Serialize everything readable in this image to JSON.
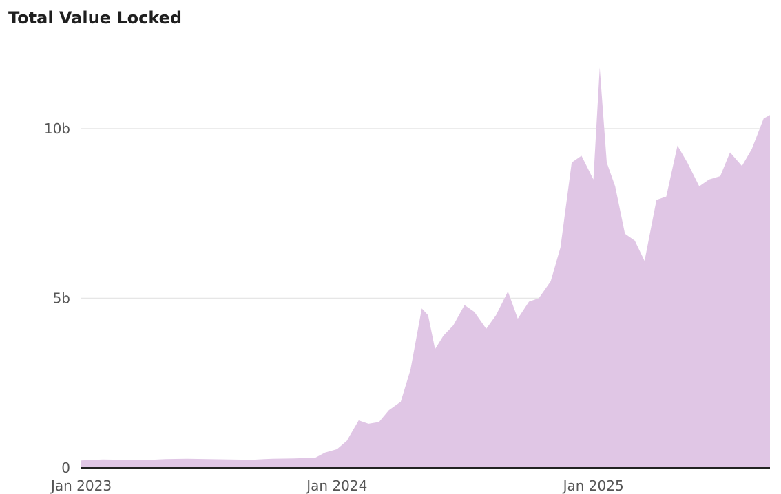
{
  "chart_data": {
    "type": "area",
    "title": "Total Value Locked",
    "xlabel": "",
    "ylabel": "",
    "x_tick_labels": [
      "Jan 2023",
      "Jan 2024",
      "Jan 2025"
    ],
    "y_tick_labels": [
      "0",
      "5b",
      "10b"
    ],
    "y_ticks": [
      0,
      5,
      10
    ],
    "y_unit": "billions",
    "xlim": [
      "2023-01-01",
      "2025-09-10"
    ],
    "ylim": [
      0,
      12
    ],
    "grid": "horizontal",
    "color": "#e0c6e5",
    "series": [
      {
        "x": [
          "2023-01-01",
          "2023-02-01",
          "2023-03-01",
          "2023-04-01",
          "2023-05-01",
          "2023-06-01",
          "2023-07-01",
          "2023-08-01",
          "2023-09-01",
          "2023-10-01",
          "2023-11-01",
          "2023-11-15",
          "2023-12-01",
          "2023-12-15",
          "2024-01-01",
          "2024-01-15",
          "2024-02-01",
          "2024-02-15",
          "2024-03-01",
          "2024-03-15",
          "2024-04-01",
          "2024-04-15",
          "2024-05-01",
          "2024-05-10",
          "2024-05-20",
          "2024-06-01",
          "2024-06-15",
          "2024-07-01",
          "2024-07-15",
          "2024-08-01",
          "2024-08-15",
          "2024-09-01",
          "2024-09-15",
          "2024-10-01",
          "2024-10-15",
          "2024-11-01",
          "2024-11-15",
          "2024-12-01",
          "2024-12-15",
          "2025-01-01",
          "2025-01-10",
          "2025-01-20",
          "2025-02-01",
          "2025-02-15",
          "2025-03-01",
          "2025-03-15",
          "2025-04-01",
          "2025-04-15",
          "2025-05-01",
          "2025-05-15",
          "2025-06-01",
          "2025-06-15",
          "2025-07-01",
          "2025-07-15",
          "2025-08-01",
          "2025-08-15",
          "2025-09-01",
          "2025-09-10"
        ],
        "values": [
          0.22,
          0.25,
          0.24,
          0.23,
          0.26,
          0.27,
          0.26,
          0.25,
          0.24,
          0.27,
          0.28,
          0.29,
          0.3,
          0.45,
          0.55,
          0.8,
          1.4,
          1.3,
          1.35,
          1.7,
          1.95,
          2.9,
          4.7,
          4.5,
          3.5,
          3.9,
          4.2,
          4.8,
          4.6,
          4.1,
          4.5,
          5.2,
          4.4,
          4.9,
          5.0,
          5.5,
          6.5,
          9.0,
          9.2,
          8.5,
          11.8,
          9.0,
          8.3,
          6.9,
          6.7,
          6.1,
          7.9,
          8.0,
          9.5,
          9.0,
          8.3,
          8.5,
          8.6,
          9.3,
          8.9,
          9.4,
          10.3,
          10.4
        ]
      }
    ]
  }
}
